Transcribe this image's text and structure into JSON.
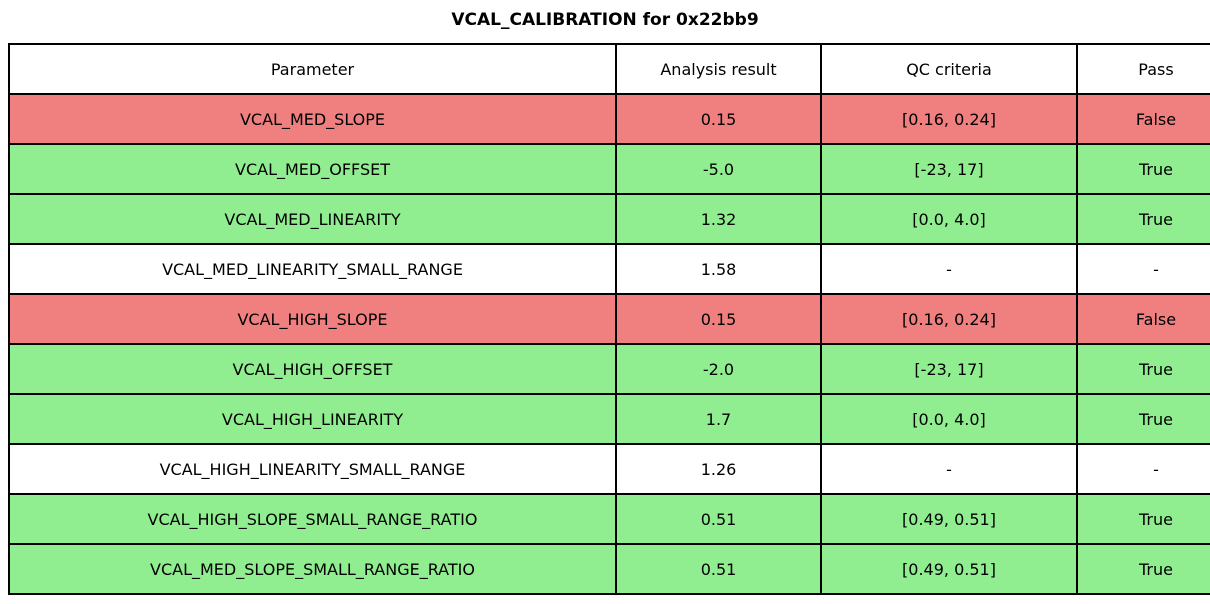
{
  "title": "VCAL_CALIBRATION for 0x22bb9",
  "chart_data": {
    "type": "table",
    "title": "VCAL_CALIBRATION for 0x22bb9",
    "columns": [
      "Parameter",
      "Analysis result",
      "QC criteria",
      "Pass"
    ],
    "rows": [
      {
        "parameter": "VCAL_MED_SLOPE",
        "analysis_result": "0.15",
        "qc_criteria": "[0.16, 0.24]",
        "pass": "False",
        "status": "fail"
      },
      {
        "parameter": "VCAL_MED_OFFSET",
        "analysis_result": "-5.0",
        "qc_criteria": "[-23, 17]",
        "pass": "True",
        "status": "pass"
      },
      {
        "parameter": "VCAL_MED_LINEARITY",
        "analysis_result": "1.32",
        "qc_criteria": "[0.0, 4.0]",
        "pass": "True",
        "status": "pass"
      },
      {
        "parameter": "VCAL_MED_LINEARITY_SMALL_RANGE",
        "analysis_result": "1.58",
        "qc_criteria": "-",
        "pass": "-",
        "status": "none"
      },
      {
        "parameter": "VCAL_HIGH_SLOPE",
        "analysis_result": "0.15",
        "qc_criteria": "[0.16, 0.24]",
        "pass": "False",
        "status": "fail"
      },
      {
        "parameter": "VCAL_HIGH_OFFSET",
        "analysis_result": "-2.0",
        "qc_criteria": "[-23, 17]",
        "pass": "True",
        "status": "pass"
      },
      {
        "parameter": "VCAL_HIGH_LINEARITY",
        "analysis_result": "1.7",
        "qc_criteria": "[0.0, 4.0]",
        "pass": "True",
        "status": "pass"
      },
      {
        "parameter": "VCAL_HIGH_LINEARITY_SMALL_RANGE",
        "analysis_result": "1.26",
        "qc_criteria": "-",
        "pass": "-",
        "status": "none"
      },
      {
        "parameter": "VCAL_HIGH_SLOPE_SMALL_RANGE_RATIO",
        "analysis_result": "0.51",
        "qc_criteria": "[0.49, 0.51]",
        "pass": "True",
        "status": "pass"
      },
      {
        "parameter": "VCAL_MED_SLOPE_SMALL_RANGE_RATIO",
        "analysis_result": "0.51",
        "qc_criteria": "[0.49, 0.51]",
        "pass": "True",
        "status": "pass"
      }
    ],
    "status_colors": {
      "fail": "#f08080",
      "pass": "#90ee90",
      "none": "#ffffff"
    },
    "layout": {
      "header_background": "#ffffff",
      "border_color": "#000000",
      "text_color": "#000000"
    }
  }
}
